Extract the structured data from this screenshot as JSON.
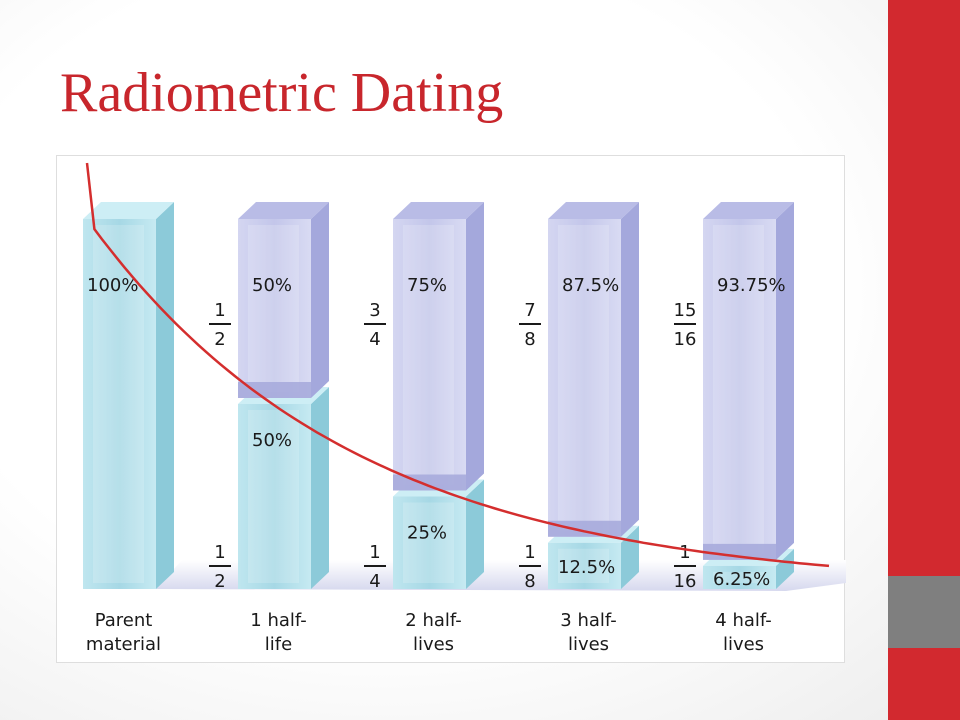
{
  "slide": {
    "title": "Radiometric Dating",
    "accent_red": "#d2292f",
    "accent_gray": "#7f7f7f",
    "title_color": "#c8262c"
  },
  "chart_data": {
    "type": "bar",
    "stacked": true,
    "categories": [
      "Parent\nmaterial",
      "1 half-\nlife",
      "2 half-\nlives",
      "3 half-\nlives",
      "4 half-\nlives"
    ],
    "ylim": [
      0,
      100
    ],
    "series": [
      {
        "values": [
          100,
          50,
          25,
          12.5,
          6.25
        ],
        "labels": [
          "100%",
          "50%",
          "25%",
          "12.5%",
          "6.25%"
        ],
        "fractions": [
          null,
          "1/2",
          "1/4",
          "1/8",
          "1/16"
        ],
        "color": "#a9d9e6"
      },
      {
        "values": [
          0,
          50,
          75,
          87.5,
          93.75
        ],
        "labels": [
          null,
          "50%",
          "75%",
          "87.5%",
          "93.75%"
        ],
        "fractions": [
          null,
          "1/2",
          "3/4",
          "7/8",
          "15/16"
        ],
        "color": "#c8cbec"
      }
    ],
    "curve": {
      "values": [
        100,
        50,
        25,
        12.5,
        6.25
      ],
      "color": "#d42e2e"
    },
    "grid": false
  }
}
